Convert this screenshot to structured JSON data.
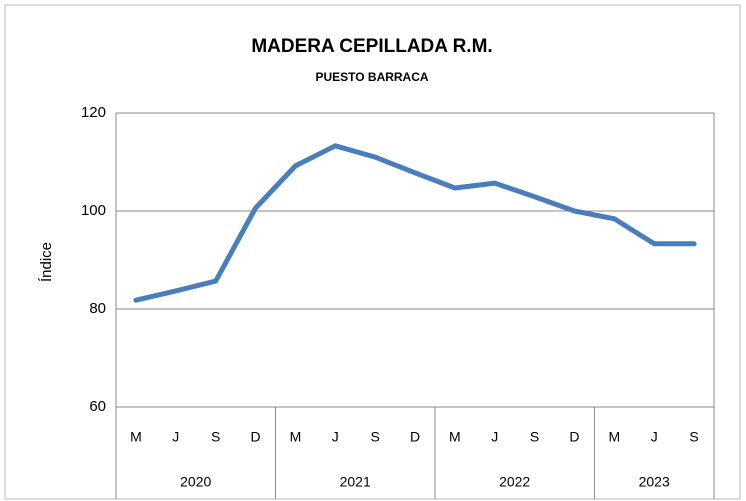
{
  "chart_data": {
    "type": "line",
    "title": "MADERA CEPILLADA R.M.",
    "subtitle": "PUESTO BARRACA",
    "y_axis_label": "Índice",
    "categories": [
      "M",
      "J",
      "S",
      "D",
      "M",
      "J",
      "S",
      "D",
      "M",
      "J",
      "S",
      "D",
      "M",
      "J",
      "S"
    ],
    "category_groups": [
      {
        "label": "2020",
        "span": 4
      },
      {
        "label": "2021",
        "span": 4
      },
      {
        "label": "2022",
        "span": 4
      },
      {
        "label": "2023",
        "span": 3
      }
    ],
    "series": [
      {
        "name": "Índice",
        "color": "#4a7ebb",
        "values": [
          81.8,
          83.7,
          85.7,
          100.6,
          109.2,
          113.3,
          111.0,
          107.8,
          104.7,
          105.7,
          102.9,
          100.0,
          98.4,
          93.3,
          93.3
        ]
      }
    ],
    "ylim": [
      60,
      120
    ],
    "yticks": [
      60,
      80,
      100,
      120
    ],
    "grid": true
  }
}
